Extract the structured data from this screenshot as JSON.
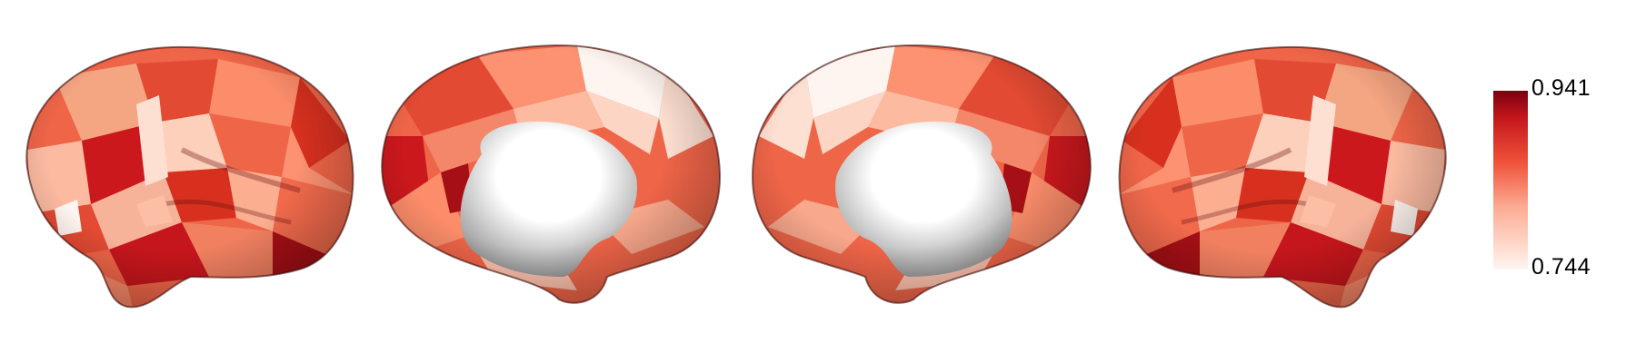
{
  "colorbar": {
    "max_label": "0.941",
    "min_label": "0.744",
    "max_value": 0.941,
    "min_value": 0.744,
    "color_high": "#8b0000",
    "color_mid": "#ee4a36",
    "color_low": "#fff5f0"
  },
  "views": [
    {
      "name": "left-lateral",
      "hemisphere": "left",
      "view": "lateral"
    },
    {
      "name": "left-medial",
      "hemisphere": "left",
      "view": "medial"
    },
    {
      "name": "right-medial",
      "hemisphere": "right",
      "view": "medial"
    },
    {
      "name": "right-lateral",
      "hemisphere": "right",
      "view": "lateral"
    }
  ]
}
